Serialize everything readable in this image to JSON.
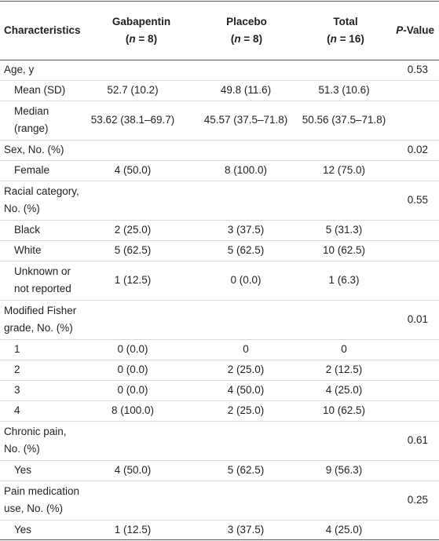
{
  "header": {
    "columns": [
      {
        "lines": [
          [
            "Characteristics"
          ]
        ]
      },
      {
        "lines": [
          [
            "Gabapentin"
          ],
          [
            "(",
            "n",
            " = 8)"
          ]
        ]
      },
      {
        "lines": [
          [
            "Placebo"
          ],
          [
            "(",
            "n",
            " =  8)"
          ]
        ]
      },
      {
        "lines": [
          [
            "Total"
          ],
          [
            "(",
            "n",
            " = 16)"
          ]
        ]
      },
      {
        "lines": [
          [
            "P",
            "-Value"
          ]
        ]
      }
    ]
  },
  "table": {
    "rows": [
      {
        "label": [
          "Age, y"
        ],
        "indent": false,
        "cells": [
          null,
          null,
          null,
          "0.53"
        ]
      },
      {
        "label": [
          "Mean (SD)"
        ],
        "indent": true,
        "cells": [
          "52.7 (10.2)",
          "49.8 (11.6)",
          "51.3 (10.6)",
          null
        ]
      },
      {
        "label": [
          "Median",
          "(range)"
        ],
        "indent": true,
        "cells": [
          "53.62 (38.1–69.7)",
          "45.57 (37.5–71.8)",
          "50.56 (37.5–71.8)",
          null
        ]
      },
      {
        "label": [
          "Sex, No. (%)"
        ],
        "indent": false,
        "cells": [
          null,
          null,
          null,
          "0.02"
        ]
      },
      {
        "label": [
          "Female"
        ],
        "indent": true,
        "cells": [
          "4 (50.0)",
          "8 (100.0)",
          "12 (75.0)",
          null
        ]
      },
      {
        "label": [
          "Racial category,",
          "No. (%)"
        ],
        "indent": false,
        "cells": [
          null,
          null,
          null,
          "0.55"
        ]
      },
      {
        "label": [
          "Black"
        ],
        "indent": true,
        "cells": [
          "2 (25.0)",
          "3 (37.5)",
          "5 (31.3)",
          null
        ]
      },
      {
        "label": [
          "White"
        ],
        "indent": true,
        "cells": [
          "5 (62.5)",
          "5 (62.5)",
          "10 (62.5)",
          null
        ]
      },
      {
        "label": [
          "Unknown or",
          "not reported"
        ],
        "indent": true,
        "cells": [
          "1 (12.5)",
          "0 (0.0)",
          "1 (6.3)",
          null
        ]
      },
      {
        "label": [
          "Modified Fisher",
          "grade, No. (%)"
        ],
        "indent": false,
        "cells": [
          null,
          null,
          null,
          "0.01"
        ]
      },
      {
        "label": [
          "1"
        ],
        "indent": true,
        "cells": [
          "0 (0.0)",
          "0",
          "0",
          null
        ]
      },
      {
        "label": [
          "2"
        ],
        "indent": true,
        "cells": [
          "0 (0.0)",
          "2 (25.0)",
          "2 (12.5)",
          null
        ]
      },
      {
        "label": [
          "3"
        ],
        "indent": true,
        "cells": [
          "0 (0.0)",
          "4 (50.0)",
          "4 (25.0)",
          null
        ]
      },
      {
        "label": [
          "4"
        ],
        "indent": true,
        "cells": [
          "8 (100.0)",
          "2 (25.0)",
          "10 (62.5)",
          null
        ]
      },
      {
        "label": [
          "Chronic pain,",
          "No. (%)"
        ],
        "indent": false,
        "cells": [
          null,
          null,
          null,
          "0.61"
        ]
      },
      {
        "label": [
          "Yes"
        ],
        "indent": true,
        "cells": [
          "4 (50.0)",
          "5 (62.5)",
          "9 (56.3)",
          null
        ]
      },
      {
        "label": [
          "Pain medication",
          "use, No. (%)"
        ],
        "indent": false,
        "cells": [
          null,
          null,
          null,
          "0.25"
        ]
      },
      {
        "label": [
          "Yes"
        ],
        "indent": true,
        "cells": [
          "1 (12.5)",
          "3 (37.5)",
          "4 (25.0)",
          null
        ]
      }
    ]
  }
}
